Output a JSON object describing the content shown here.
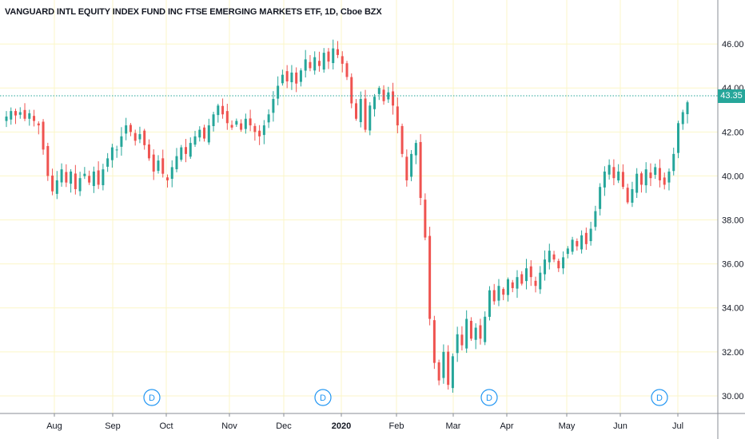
{
  "chart_data": {
    "type": "candlestick",
    "title": "VANGUARD INTL EQUITY INDEX FUND INC FTSE EMERGING MARKETS ETF, 1D, Cboe BZX",
    "ylim": [
      29.2,
      48
    ],
    "y_ticks": [
      "30.00",
      "32.00",
      "34.00",
      "36.00",
      "38.00",
      "40.00",
      "42.00",
      "44.00",
      "46.00"
    ],
    "x_ticks": [
      "Aug",
      "Sep",
      "Oct",
      "Nov",
      "Dec",
      "2020",
      "Feb",
      "Mar",
      "Apr",
      "May",
      "Jun",
      "Jul"
    ],
    "current_price": "43.35",
    "event_markers": [
      "D",
      "D",
      "D",
      "D"
    ],
    "colors": {
      "up": "#26a69a",
      "down": "#ef5350",
      "price_line": "#26a69a",
      "grid": "#fbf6c8"
    },
    "closes": [
      42.7,
      42.95,
      42.75,
      42.9,
      42.6,
      42.85,
      42.5,
      42.3,
      41.2,
      40.0,
      39.3,
      39.8,
      40.3,
      39.7,
      40.2,
      39.4,
      39.9,
      40.1,
      39.7,
      40.2,
      39.6,
      40.3,
      40.8,
      41.3,
      41.2,
      41.8,
      42.3,
      42.0,
      41.6,
      41.9,
      41.4,
      40.8,
      40.2,
      40.7,
      40.1,
      39.8,
      40.4,
      40.9,
      41.3,
      41.0,
      41.5,
      41.8,
      42.1,
      41.7,
      42.3,
      42.8,
      43.2,
      42.8,
      42.4,
      42.2,
      42.5,
      42.1,
      42.6,
      42.3,
      42.0,
      41.8,
      42.3,
      42.8,
      43.5,
      44.1,
      44.6,
      44.3,
      44.7,
      44.2,
      44.8,
      45.3,
      44.9,
      45.4,
      45.0,
      45.6,
      45.2,
      45.8,
      45.5,
      45.1,
      44.5,
      43.3,
      42.6,
      43.5,
      42.1,
      43.2,
      43.6,
      44.0,
      43.4,
      43.8,
      43.2,
      42.3,
      41.0,
      39.8,
      41.0,
      41.5,
      39.0,
      37.2,
      33.5,
      31.5,
      30.7,
      32.0,
      30.5,
      31.8,
      32.8,
      32.3,
      33.5,
      32.6,
      33.1,
      32.6,
      33.6,
      34.8,
      34.3,
      35.0,
      34.6,
      35.3,
      34.9,
      35.4,
      35.1,
      35.8,
      35.4,
      35.0,
      35.6,
      36.2,
      36.6,
      36.2,
      35.8,
      36.3,
      36.7,
      37.1,
      36.8,
      37.3,
      36.9,
      37.6,
      38.4,
      39.5,
      40.2,
      40.5,
      39.9,
      40.2,
      39.5,
      38.8,
      39.4,
      40.1,
      39.6,
      40.3,
      39.9,
      40.4,
      39.8,
      39.6,
      40.2,
      41.0,
      42.4,
      42.9,
      43.35
    ]
  }
}
